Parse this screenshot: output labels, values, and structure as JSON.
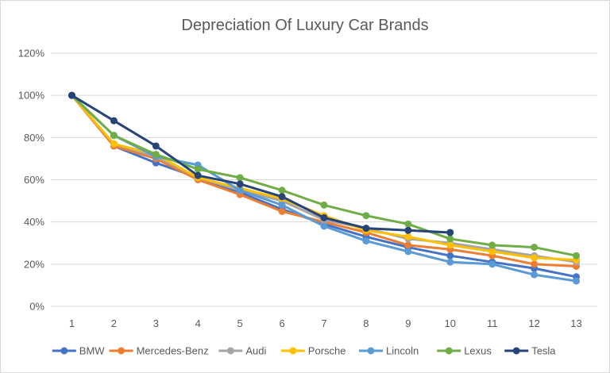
{
  "chart_data": {
    "type": "line",
    "title": "Depreciation Of Luxury Car Brands",
    "xlabel": "",
    "ylabel": "",
    "x": [
      1,
      2,
      3,
      4,
      5,
      6,
      7,
      8,
      9,
      10,
      11,
      12,
      13
    ],
    "y_ticks": [
      "0%",
      "20%",
      "40%",
      "60%",
      "80%",
      "100%",
      "120%"
    ],
    "ylim": [
      0,
      120
    ],
    "grid": true,
    "legend_position": "bottom",
    "series": [
      {
        "name": "BMW",
        "color": "#4472c4",
        "values": [
          100,
          76,
          68,
          61,
          54,
          46,
          39,
          33,
          28,
          24,
          21,
          18,
          14
        ]
      },
      {
        "name": "Mercedes-Benz",
        "color": "#ed7d31",
        "values": [
          100,
          76,
          70,
          60,
          53,
          45,
          40,
          35,
          29,
          27,
          24,
          20,
          19
        ]
      },
      {
        "name": "Audi",
        "color": "#a5a5a5",
        "values": [
          100,
          77,
          71,
          61,
          55,
          50,
          41,
          37,
          32,
          30,
          27,
          24,
          21
        ]
      },
      {
        "name": "Porsche",
        "color": "#ffc000",
        "values": [
          100,
          77,
          72,
          61,
          56,
          51,
          43,
          36,
          33,
          29,
          26,
          23,
          22
        ]
      },
      {
        "name": "Lincoln",
        "color": "#5b9bd5",
        "values": [
          100,
          81,
          71,
          67,
          55,
          48,
          38,
          31,
          26,
          21,
          20,
          15,
          12
        ]
      },
      {
        "name": "Lexus",
        "color": "#70ad47",
        "values": [
          100,
          81,
          72,
          65,
          61,
          55,
          48,
          43,
          39,
          32,
          29,
          28,
          24
        ]
      },
      {
        "name": "Tesla",
        "color": "#264478",
        "values": [
          100,
          88,
          76,
          62,
          58,
          52,
          42,
          37,
          36,
          35,
          null,
          null,
          null
        ]
      }
    ]
  }
}
